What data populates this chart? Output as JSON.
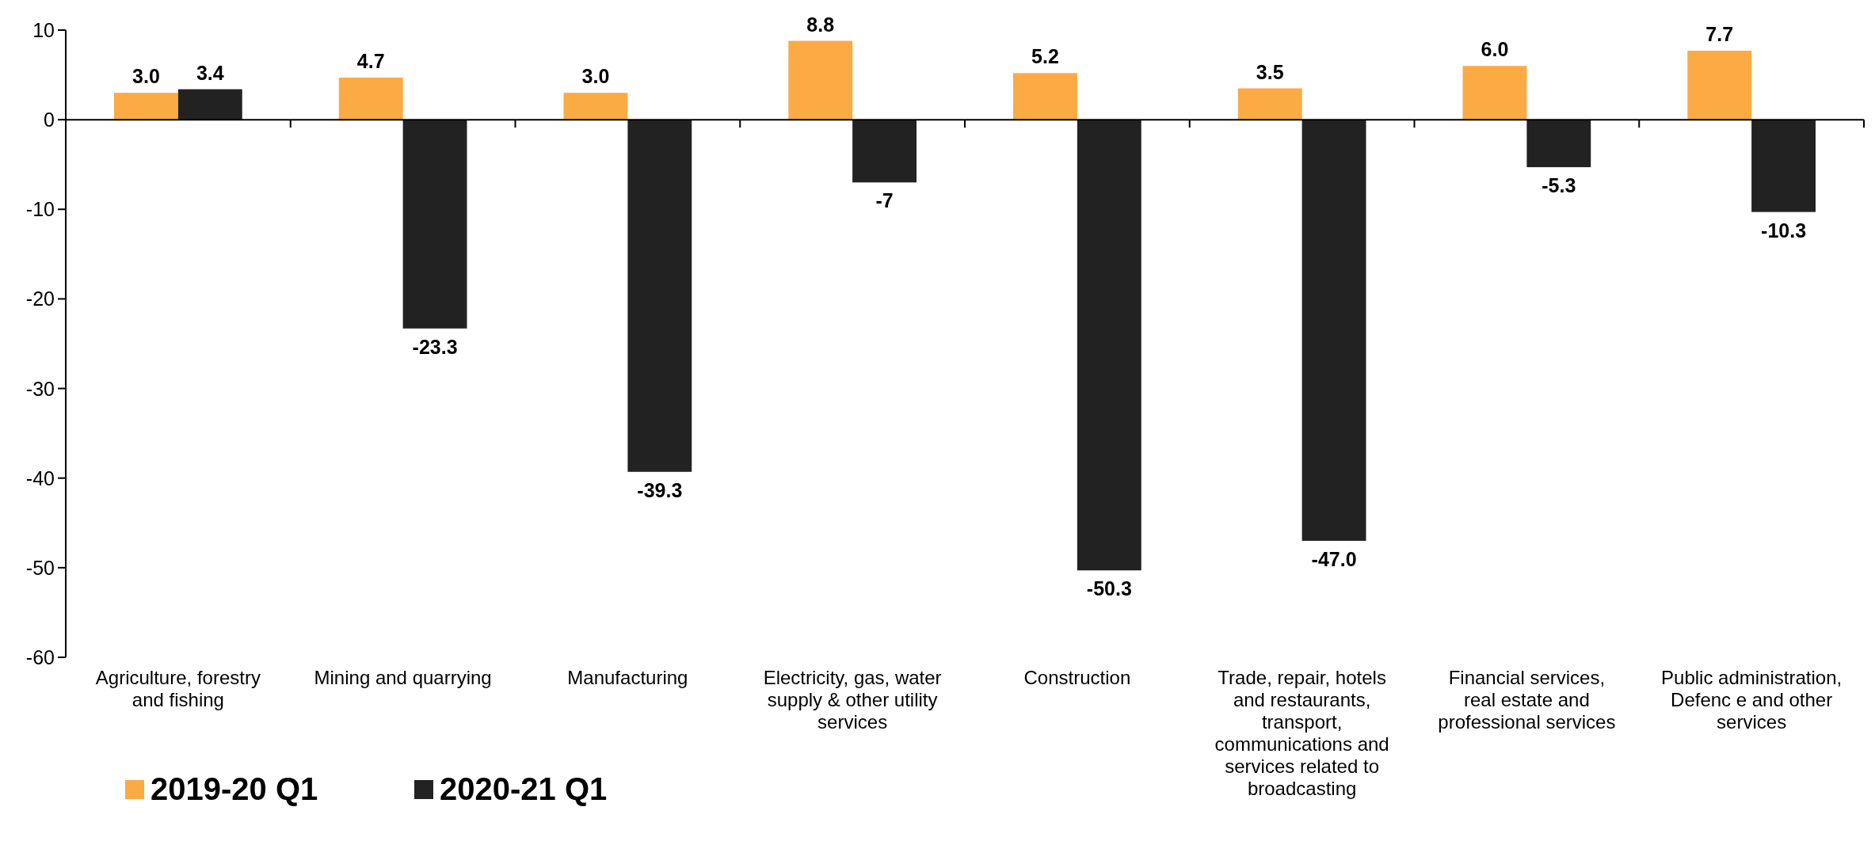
{
  "chart_data": {
    "type": "bar",
    "categories": [
      "Agriculture, forestry and fishing",
      "Mining and quarrying",
      "Manufacturing",
      "Electricity, gas, water supply & other utility services",
      "Construction",
      "Trade, repair, hotels and restaurants, transport, communications and services related to broadcasting",
      "Financial services, real estate and professional services",
      "Public administration, Defenc e and other services"
    ],
    "series": [
      {
        "name": "2019-20 Q1",
        "color": "#fbaa44",
        "values": [
          3.0,
          4.7,
          3.0,
          8.8,
          5.2,
          3.5,
          6.0,
          7.7
        ],
        "value_labels": [
          "3.0",
          "4.7",
          "3.0",
          "8.8",
          "5.2",
          "3.5",
          "6.0",
          "7.7"
        ]
      },
      {
        "name": "2020-21 Q1",
        "color": "#222222",
        "values": [
          3.4,
          -23.3,
          -39.3,
          -7,
          -50.3,
          -47.0,
          -5.3,
          -10.3
        ],
        "value_labels": [
          "3.4",
          "-23.3",
          "-39.3",
          "-7",
          "-50.3",
          "-47.0",
          "-5.3",
          "-10.3"
        ]
      }
    ],
    "ylim": [
      -60,
      10
    ],
    "yticks": [
      -60,
      -50,
      -40,
      -30,
      -20,
      -10,
      0,
      10
    ],
    "legend": "bottom left"
  }
}
